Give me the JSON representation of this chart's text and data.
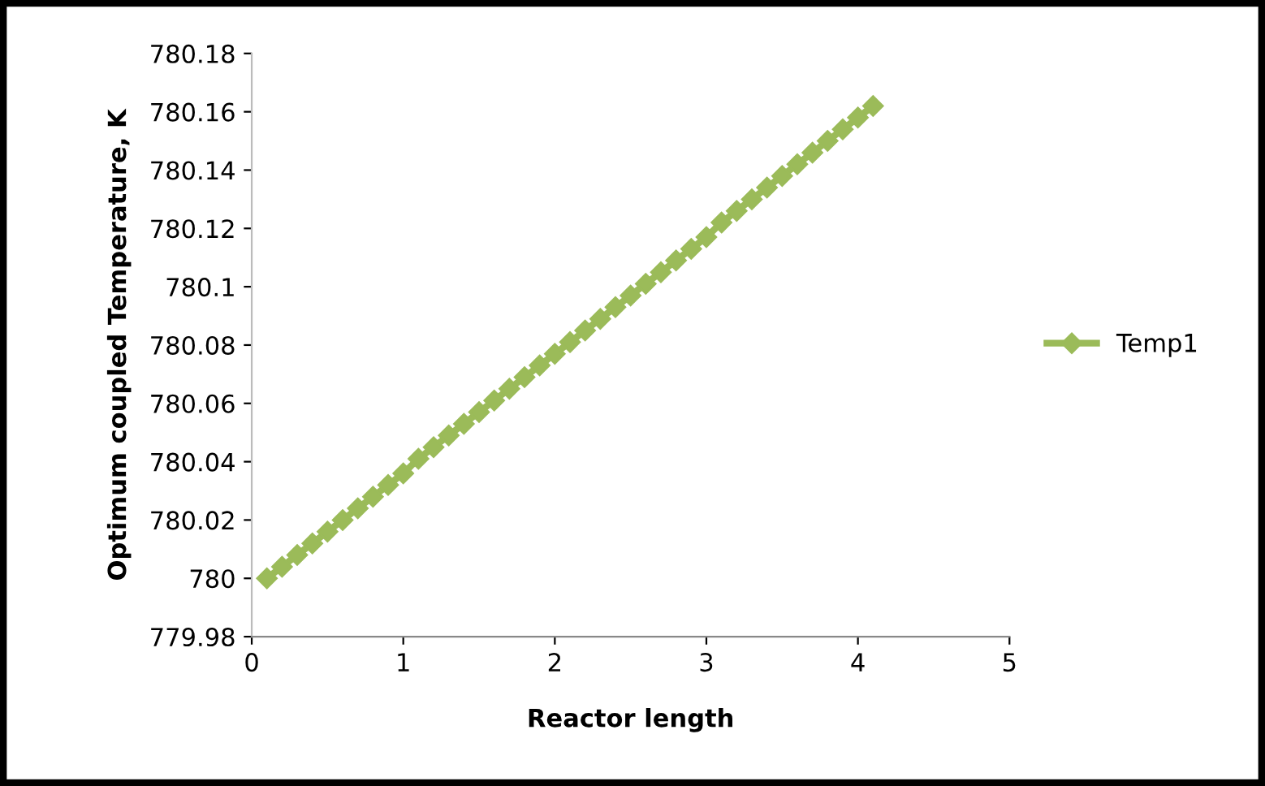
{
  "chart_data": {
    "type": "line",
    "xlabel": "Reactor length",
    "ylabel": "Optimum coupled Temperature, K",
    "x": [
      0.1,
      0.2,
      0.3,
      0.4,
      0.5,
      0.6,
      0.7,
      0.8,
      0.9,
      1.0,
      1.1,
      1.2,
      1.3,
      1.4,
      1.5,
      1.6,
      1.7,
      1.8,
      1.9,
      2.0,
      2.1,
      2.2,
      2.3,
      2.4,
      2.5,
      2.6,
      2.7,
      2.8,
      2.9,
      3.0,
      3.1,
      3.2,
      3.3,
      3.4,
      3.5,
      3.6,
      3.7,
      3.8,
      3.9,
      4.0,
      4.1
    ],
    "series": [
      {
        "name": "Temp1",
        "color": "#9bbb59",
        "values": [
          780.0,
          780.004,
          780.008,
          780.012,
          780.016,
          780.02,
          780.024,
          780.028,
          780.032,
          780.036,
          780.041,
          780.045,
          780.049,
          780.053,
          780.057,
          780.061,
          780.065,
          780.069,
          780.073,
          780.077,
          780.081,
          780.085,
          780.089,
          780.093,
          780.097,
          780.101,
          780.105,
          780.109,
          780.113,
          780.117,
          780.122,
          780.126,
          780.13,
          780.134,
          780.138,
          780.142,
          780.146,
          780.15,
          780.154,
          780.158,
          780.162
        ]
      }
    ],
    "xlim": [
      0,
      5
    ],
    "xticks": [
      0,
      1,
      2,
      3,
      4,
      5
    ],
    "ylim": [
      779.98,
      780.18
    ],
    "yticks": [
      779.98,
      780,
      780.02,
      780.04,
      780.06,
      780.08,
      780.1,
      780.12,
      780.14,
      780.16,
      780.18
    ],
    "marker": "diamond",
    "line_style": "solid",
    "legend": "right",
    "grid": false
  }
}
